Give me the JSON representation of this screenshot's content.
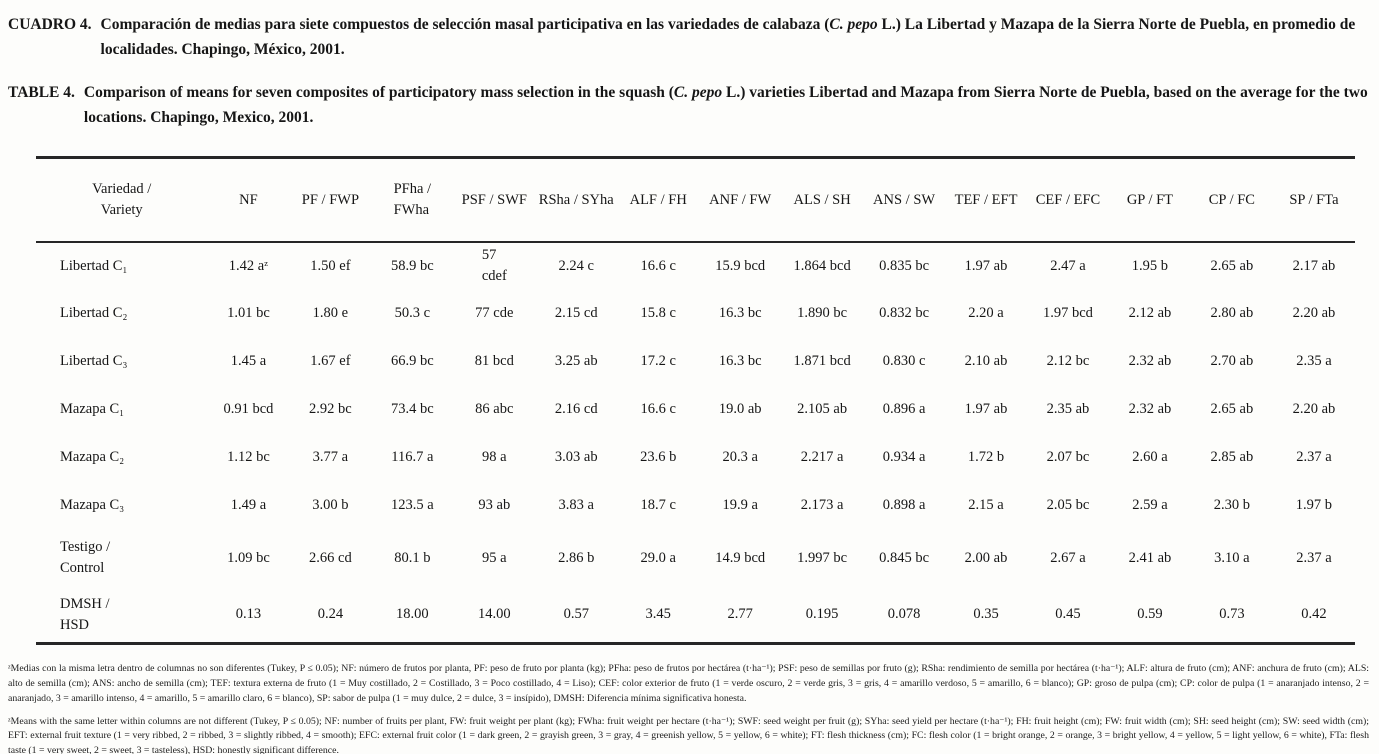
{
  "captions": {
    "spanish": {
      "label": "CUADRO 4.",
      "segments": [
        {
          "text": "Comparación de medias para siete compuestos de selección masal participativa en las variedades de calabaza ("
        },
        {
          "text": "C. pepo",
          "italic": true
        },
        {
          "text": " L.) La Libertad y Mazapa de la Sierra Norte de Puebla, en promedio de localidades. Chapingo, México, 2001."
        }
      ]
    },
    "english": {
      "label": "TABLE 4.",
      "segments": [
        {
          "text": "Comparison of means for seven composites of participatory mass selection in the squash ("
        },
        {
          "text": "C. pepo",
          "italic": true
        },
        {
          "text": " L.) varieties Libertad and Mazapa from Sierra Norte de Puebla, based on the average for the two locations. Chapingo, Mexico, 2001."
        }
      ]
    }
  },
  "table": {
    "columns": [
      "Variedad /\nVariety",
      "NF",
      "PF / FWP",
      "PFha /\nFWha",
      "PSF / SWF",
      "RSha / SYha",
      "ALF / FH",
      "ANF / FW",
      "ALS / SH",
      "ANS / SW",
      "TEF / EFT",
      "CEF / EFC",
      "GP / FT",
      "CP / FC",
      "SP / FTa"
    ],
    "rows": [
      {
        "variety": "Libertad C₁",
        "values": [
          "1.42 aᶻ",
          "1.50 ef",
          "58.9 bc",
          "57\ncdef",
          "2.24 c",
          "16.6 c",
          "15.9 bcd",
          "1.864 bcd",
          "0.835 bc",
          "1.97 ab",
          "2.47 a",
          "1.95 b",
          "2.65 ab",
          "2.17 ab"
        ]
      },
      {
        "variety": "Libertad C₂",
        "values": [
          "1.01 bc",
          "1.80 e",
          "50.3 c",
          "77 cde",
          "2.15 cd",
          "15.8 c",
          "16.3 bc",
          "1.890 bc",
          "0.832 bc",
          "2.20 a",
          "1.97 bcd",
          "2.12 ab",
          "2.80 ab",
          "2.20 ab"
        ]
      },
      {
        "variety": "Libertad C₃",
        "values": [
          "1.45 a",
          "1.67 ef",
          "66.9 bc",
          "81 bcd",
          "3.25 ab",
          "17.2 c",
          "16.3 bc",
          "1.871 bcd",
          "0.830 c",
          "2.10 ab",
          "2.12 bc",
          "2.32 ab",
          "2.70 ab",
          "2.35 a"
        ]
      },
      {
        "variety": "Mazapa C₁",
        "values": [
          "0.91 bcd",
          "2.92 bc",
          "73.4 bc",
          "86 abc",
          "2.16 cd",
          "16.6 c",
          "19.0 ab",
          "2.105 ab",
          "0.896 a",
          "1.97 ab",
          "2.35 ab",
          "2.32 ab",
          "2.65 ab",
          "2.20 ab"
        ]
      },
      {
        "variety": "Mazapa C₂",
        "values": [
          "1.12 bc",
          "3.77 a",
          "116.7 a",
          "98 a",
          "3.03 ab",
          "23.6 b",
          "20.3 a",
          "2.217 a",
          "0.934 a",
          "1.72 b",
          "2.07 bc",
          "2.60 a",
          "2.85 ab",
          "2.37 a"
        ]
      },
      {
        "variety": "Mazapa C₃",
        "values": [
          "1.49 a",
          "3.00 b",
          "123.5 a",
          "93 ab",
          "3.83 a",
          "18.7 c",
          "19.9 a",
          "2.173 a",
          "0.898 a",
          "2.15 a",
          "2.05 bc",
          "2.59 a",
          "2.30 b",
          "1.97 b"
        ]
      },
      {
        "variety": "Testigo /\nControl",
        "values": [
          "1.09 bc",
          "2.66 cd",
          "80.1 b",
          "95 a",
          "2.86 b",
          "29.0 a",
          "14.9 bcd",
          "1.997 bc",
          "0.845 bc",
          "2.00 ab",
          "2.67 a",
          "2.41 ab",
          "3.10 a",
          "2.37 a"
        ]
      },
      {
        "variety": "DMSH /\nHSD",
        "values": [
          "0.13",
          "0.24",
          "18.00",
          "14.00",
          "0.57",
          "3.45",
          "2.77",
          "0.195",
          "0.078",
          "0.35",
          "0.45",
          "0.59",
          "0.73",
          "0.42"
        ]
      }
    ]
  },
  "footnotes": {
    "spanish": "ᶻMedias con la misma letra dentro de columnas no son diferentes (Tukey, P ≤ 0.05); NF: número de frutos por planta, PF: peso de fruto por planta (kg); PFha: peso de frutos por hectárea (t·ha⁻¹); PSF: peso de semillas por fruto (g); RSha: rendimiento de semilla por hectárea (t·ha⁻¹); ALF: altura de fruto (cm); ANF: anchura de fruto (cm); ALS: alto de semilla (cm); ANS: ancho de semilla (cm); TEF: textura externa de fruto (1 = Muy costillado, 2 = Costillado, 3 = Poco costillado, 4 = Liso); CEF: color exterior de fruto (1 = verde oscuro, 2 = verde gris, 3 = gris, 4 = amarillo verdoso, 5 = amarillo, 6 = blanco); GP: groso de pulpa (cm); CP: color de pulpa (1 = anaranjado intenso, 2 = anaranjado, 3 = amarillo intenso, 4 = amarillo, 5 = amarillo claro, 6 = blanco), SP: sabor de pulpa (1 = muy dulce, 2 = dulce, 3 = insípido), DMSH: Diferencia mínima significativa honesta.",
    "english": "ᶻMeans with the same letter within columns are not different (Tukey, P ≤ 0.05); NF: number of fruits per plant, FW: fruit weight per plant (kg); FWha: fruit weight per hectare (t·ha⁻¹); SWF: seed weight per fruit (g); SYha: seed yield per hectare (t·ha⁻¹); FH: fruit height (cm); FW: fruit width (cm); SH: seed height (cm); SW: seed width (cm); EFT: external fruit texture (1 = very ribbed, 2 = ribbed, 3 = slightly ribbed, 4 = smooth); EFC: external fruit color (1 = dark green, 2 = grayish green, 3 = gray, 4 = greenish yellow, 5 = yellow, 6 = white); FT: flesh thickness (cm); FC: flesh color (1 = bright orange, 2 = orange, 3 = bright yellow, 4 = yellow, 5 = light yellow, 6 = white), FTa: flesh taste (1 = very sweet, 2 = sweet, 3 = tasteless), HSD: honestly significant difference."
  }
}
